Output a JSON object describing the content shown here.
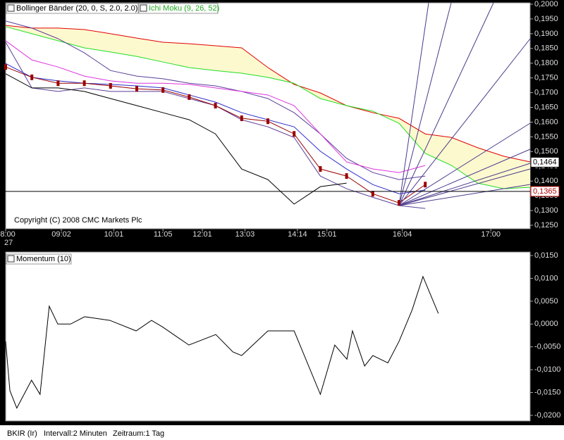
{
  "chart_data": [
    {
      "type": "line",
      "indicators": [
        "Bollinger Bänder (20, 0, S, 2.0, 2.0)",
        "Ichi Moku (9, 26, 52)"
      ],
      "copyright": "Copyright (C) 2008 CMC Markets Plc",
      "date_label": "27",
      "x": [
        0,
        8,
        16,
        24,
        32,
        40,
        48,
        56,
        64,
        72,
        80,
        88,
        96,
        104,
        112,
        120,
        128,
        136,
        144,
        152,
        160
      ],
      "xlim": [
        0,
        160
      ],
      "xticks": [
        {
          "value": 0,
          "label": "08:00"
        },
        {
          "value": 17,
          "label": "09:02"
        },
        {
          "value": 33,
          "label": "10:01"
        },
        {
          "value": 48,
          "label": "11:05"
        },
        {
          "value": 60,
          "label": "12:01"
        },
        {
          "value": 73,
          "label": "13:03"
        },
        {
          "value": 89,
          "label": "14:14"
        },
        {
          "value": 98,
          "label": "15:01"
        },
        {
          "value": 121,
          "label": "16:04"
        },
        {
          "value": 148,
          "label": "17:00"
        }
      ],
      "ylim": [
        0.125,
        0.2
      ],
      "yticks": [
        {
          "value": 0.2,
          "label": "0,2000"
        },
        {
          "value": 0.195,
          "label": "0,1950"
        },
        {
          "value": 0.19,
          "label": "0,1900"
        },
        {
          "value": 0.185,
          "label": "0,1850"
        },
        {
          "value": 0.18,
          "label": "0,1800"
        },
        {
          "value": 0.175,
          "label": "0,1750"
        },
        {
          "value": 0.17,
          "label": "0,1700"
        },
        {
          "value": 0.165,
          "label": "0,1650"
        },
        {
          "value": 0.16,
          "label": "0,1600"
        },
        {
          "value": 0.155,
          "label": "0,1550"
        },
        {
          "value": 0.15,
          "label": "0,1500"
        },
        {
          "value": 0.145,
          "label": "0,1450"
        },
        {
          "value": 0.14,
          "label": "0,1400"
        },
        {
          "value": 0.135,
          "label": "0,1350"
        },
        {
          "value": 0.13,
          "label": "0,1300"
        },
        {
          "value": 0.125,
          "label": "0,1250"
        }
      ],
      "cloud": {
        "between": [
          0,
          1
        ],
        "color": "#fdf9cf"
      },
      "series": [
        {
          "color": "#e00000",
          "values": [
            0.1928,
            0.1919,
            0.1919,
            0.1914,
            0.19,
            0.1885,
            0.1871,
            0.1866,
            0.1859,
            0.1852,
            0.1785,
            0.1728,
            0.1699,
            0.1656,
            0.1632,
            0.1613,
            0.156,
            0.1548,
            0.1513,
            0.1484,
            0.1465
          ]
        },
        {
          "color": "#22dd22",
          "values": [
            0.1924,
            0.19,
            0.1876,
            0.1852,
            0.1838,
            0.1823,
            0.1804,
            0.1785,
            0.1775,
            0.1766,
            0.1752,
            0.1732,
            0.168,
            0.1656,
            0.1637,
            0.1596,
            0.1494,
            0.1453,
            0.1393,
            0.1374,
            0.1379
          ]
        },
        {
          "color": "#5b3f99",
          "values": [
            0.1943,
            0.1919,
            0.1883,
            0.1835,
            0.1775,
            0.1756,
            0.1747,
            0.1732,
            0.1723,
            0.1704,
            0.168,
            0.1632,
            0.156,
            0.1477,
            0.1429,
            0.1405,
            0.1417,
            null,
            null,
            null,
            null
          ]
        },
        {
          "color": "#dd33dd",
          "values": [
            0.1876,
            0.1811,
            0.1787,
            0.1756,
            0.174,
            0.1732,
            0.1732,
            0.1728,
            0.1716,
            0.1704,
            0.1692,
            0.1656,
            0.156,
            0.1465,
            0.1441,
            0.1429,
            0.1453,
            null,
            null,
            null,
            null
          ]
        },
        {
          "color": "#2b2bcc",
          "values": [
            0.1799,
            0.1752,
            0.174,
            0.1732,
            0.1728,
            0.1723,
            0.1716,
            0.1692,
            0.1668,
            0.1632,
            0.1608,
            0.1584,
            0.1501,
            0.1441,
            0.1388,
            0.1357,
            0.1369,
            null,
            null,
            null,
            null
          ]
        },
        {
          "color": "#5b3f99",
          "values": [
            0.1871,
            0.1716,
            0.1704,
            0.1716,
            0.1704,
            0.1704,
            0.1704,
            0.168,
            0.1656,
            0.1608,
            0.1584,
            0.1548,
            0.1417,
            0.1374,
            0.1345,
            0.1317,
            0.1307,
            null,
            null,
            null,
            null
          ]
        },
        {
          "color": "#990000",
          "marker": true,
          "values": [
            0.1787,
            0.1752,
            0.1732,
            0.1732,
            0.1723,
            0.1713,
            0.1709,
            0.1685,
            0.1656,
            0.1613,
            0.1603,
            0.156,
            0.1441,
            0.1417,
            0.1357,
            0.1326,
            0.1388,
            null,
            null,
            null,
            null
          ]
        },
        {
          "color": "#000000",
          "values": [
            0.1764,
            0.1716,
            0.1716,
            0.1704,
            0.168,
            0.1656,
            0.1632,
            0.1608,
            0.156,
            0.1441,
            0.1405,
            0.1322,
            0.1381,
            0.1393,
            null,
            null,
            null,
            null,
            null,
            null,
            null
          ]
        }
      ],
      "price_lines": [
        {
          "value": 0.1464,
          "label": "0,1464",
          "color": "#000000",
          "line": false
        },
        {
          "value": 0.1365,
          "label": "0,1365",
          "color": "#b00000",
          "line": true
        }
      ]
    },
    {
      "type": "line",
      "title": "Momentum (10)",
      "x": [
        0,
        1.3,
        3.4,
        7.9,
        10.5,
        13.3,
        15.9,
        19.8,
        24.1,
        31.8,
        39.8,
        44.5,
        48,
        55.9,
        64.1,
        69.3,
        72,
        80,
        88,
        96,
        100.4,
        104.1,
        105.8,
        109.5,
        112,
        116.6,
        120,
        124,
        127.3,
        132
      ],
      "xlim": [
        0,
        160
      ],
      "ylim": [
        -0.02,
        0.015
      ],
      "yticks": [
        {
          "value": 0.015,
          "label": "0,0150"
        },
        {
          "value": 0.01,
          "label": "0,0100"
        },
        {
          "value": 0.005,
          "label": "0,0050"
        },
        {
          "value": 0,
          "label": "0,0000"
        },
        {
          "value": -0.005,
          "label": "-0,0050"
        },
        {
          "value": -0.01,
          "label": "-0,0100"
        },
        {
          "value": -0.015,
          "label": "-0,0150"
        },
        {
          "value": -0.02,
          "label": "-0,0200"
        }
      ],
      "series": [
        {
          "color": "#000000",
          "values": [
            -0.0038,
            -0.0146,
            -0.0184,
            -0.0123,
            -0.0154,
            0.0039,
            0,
            0,
            0.0016,
            0.0008,
            -0.0015,
            0.0008,
            -0.0007,
            -0.0046,
            -0.0023,
            -0.0061,
            -0.0069,
            -0.0015,
            -0.0015,
            -0.0154,
            -0.0046,
            -0.0077,
            -0.0015,
            -0.0092,
            -0.0069,
            -0.0085,
            -0.0038,
            0.0031,
            0.0104,
            0.0023
          ]
        }
      ]
    }
  ],
  "footer": {
    "symbol": "BKIR (Ir)",
    "interval": "Intervall:2 Minuten",
    "period": "Zeitraum:1 Tag"
  }
}
